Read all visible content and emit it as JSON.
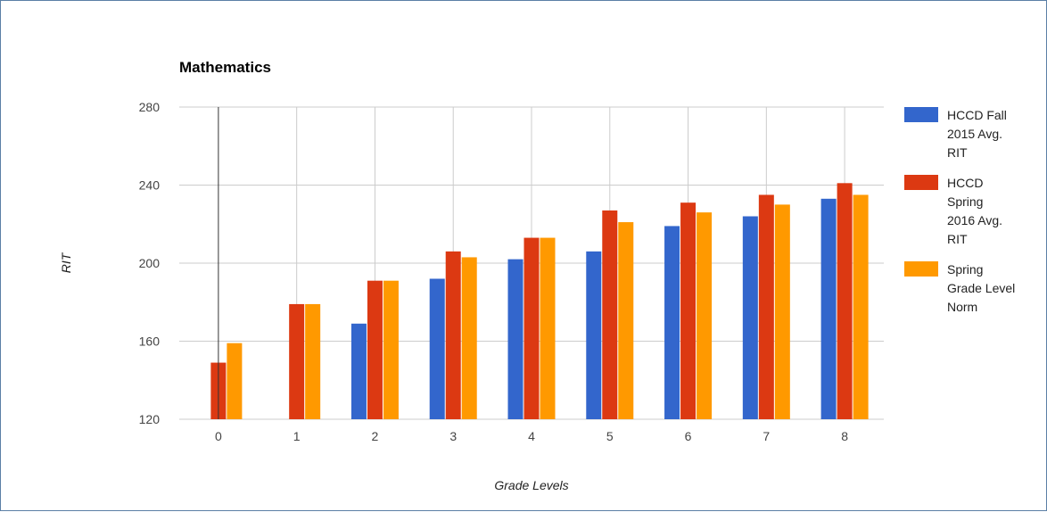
{
  "chart_data": {
    "type": "bar",
    "title": "Mathematics",
    "xlabel": "Grade Levels",
    "ylabel": "RIT",
    "categories": [
      "0",
      "1",
      "2",
      "3",
      "4",
      "5",
      "6",
      "7",
      "8"
    ],
    "ylim": [
      120,
      280
    ],
    "yticks": [
      120,
      160,
      200,
      240,
      280
    ],
    "grid": true,
    "legend_position": "right",
    "series": [
      {
        "name": "HCCD Fall 2015 Avg. RIT",
        "legend_lines": [
          "HCCD Fall",
          "2015 Avg.",
          "RIT"
        ],
        "color": "#3366cc",
        "values": [
          null,
          null,
          169,
          192,
          202,
          206,
          219,
          224,
          233
        ]
      },
      {
        "name": "HCCD Spring 2016 Avg. RIT",
        "legend_lines": [
          "HCCD",
          "Spring",
          "2016 Avg.",
          "RIT"
        ],
        "color": "#dc3912",
        "values": [
          149,
          179,
          191,
          206,
          213,
          227,
          231,
          235,
          241
        ]
      },
      {
        "name": "Spring Grade Level Norm",
        "legend_lines": [
          "Spring",
          "Grade Level",
          "Norm"
        ],
        "color": "#ff9900",
        "values": [
          159,
          179,
          191,
          203,
          213,
          221,
          226,
          230,
          235
        ]
      }
    ]
  }
}
